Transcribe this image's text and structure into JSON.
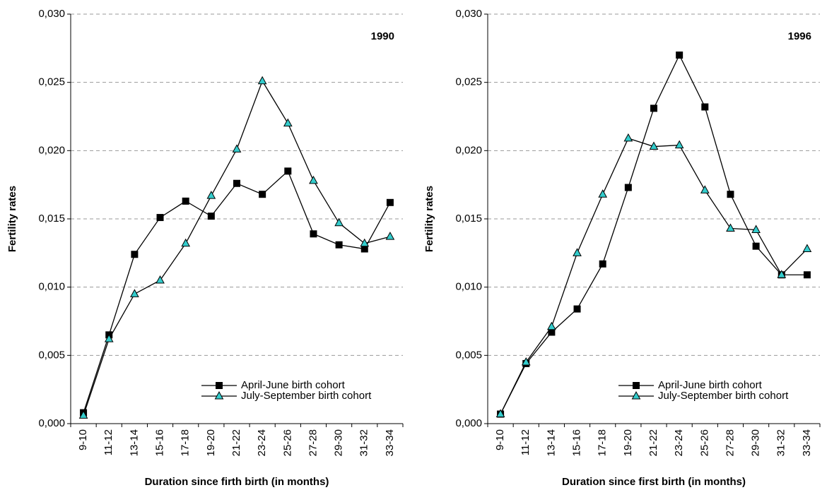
{
  "chart_data": [
    {
      "type": "line",
      "annotation": "1990",
      "xlabel": "Duration since firth birth (in months)",
      "ylabel": "Fertility rates",
      "categories": [
        "9-10",
        "11-12",
        "13-14",
        "15-16",
        "17-18",
        "19-20",
        "21-22",
        "23-24",
        "25-26",
        "27-28",
        "29-30",
        "31-32",
        "33-34"
      ],
      "series": [
        {
          "name": "April-June birth cohort",
          "color": "#000000",
          "marker": "square",
          "values": [
            0.0008,
            0.0065,
            0.0124,
            0.0151,
            0.0163,
            0.0152,
            0.0176,
            0.0168,
            0.0185,
            0.0139,
            0.0131,
            0.0128,
            0.0162
          ]
        },
        {
          "name": "July-September birth cohort",
          "color": "#33cccc",
          "marker": "triangle",
          "values": [
            0.0006,
            0.0062,
            0.0095,
            0.0105,
            0.0132,
            0.0167,
            0.0201,
            0.0251,
            0.022,
            0.0178,
            0.0147,
            0.0132,
            0.0137
          ]
        }
      ],
      "ylim": [
        0,
        0.03
      ],
      "yticks": [
        {
          "value": 0,
          "label": "0,000"
        },
        {
          "value": 0.005,
          "label": "0,005"
        },
        {
          "value": 0.01,
          "label": "0,010"
        },
        {
          "value": 0.015,
          "label": "0,015"
        },
        {
          "value": 0.02,
          "label": "0,020"
        },
        {
          "value": 0.025,
          "label": "0,025"
        },
        {
          "value": 0.03,
          "label": "0,030"
        }
      ],
      "grid": true,
      "legend": "lower right"
    },
    {
      "type": "line",
      "annotation": "1996",
      "xlabel": "Duration since first birth (in months)",
      "ylabel": "Fertility rates",
      "categories": [
        "9-10",
        "11-12",
        "13-14",
        "15-16",
        "17-18",
        "19-20",
        "21-22",
        "23-24",
        "25-26",
        "27-28",
        "29-30",
        "31-32",
        "33-34"
      ],
      "series": [
        {
          "name": "April-June birth cohort",
          "color": "#000000",
          "marker": "square",
          "values": [
            0.0007,
            0.0044,
            0.0067,
            0.0084,
            0.0117,
            0.0173,
            0.0231,
            0.027,
            0.0232,
            0.0168,
            0.013,
            0.0109,
            0.0109
          ]
        },
        {
          "name": "July-September birth cohort",
          "color": "#33cccc",
          "marker": "triangle",
          "values": [
            0.0007,
            0.0045,
            0.0071,
            0.0125,
            0.0168,
            0.0209,
            0.0203,
            0.0204,
            0.0171,
            0.0143,
            0.0142,
            0.0109,
            0.0128
          ]
        }
      ],
      "ylim": [
        0,
        0.03
      ],
      "yticks": [
        {
          "value": 0,
          "label": "0,000"
        },
        {
          "value": 0.005,
          "label": "0,005"
        },
        {
          "value": 0.01,
          "label": "0,010"
        },
        {
          "value": 0.015,
          "label": "0,015"
        },
        {
          "value": 0.02,
          "label": "0,020"
        },
        {
          "value": 0.025,
          "label": "0,025"
        },
        {
          "value": 0.03,
          "label": "0,030"
        }
      ],
      "grid": true,
      "legend": "lower right"
    }
  ]
}
